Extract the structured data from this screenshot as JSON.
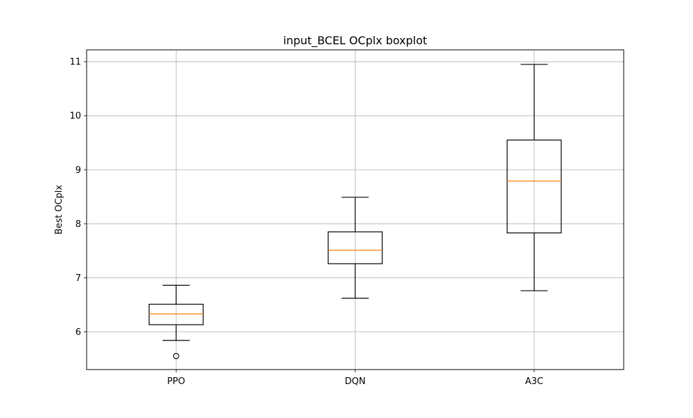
{
  "chart_data": {
    "type": "boxplot",
    "title": "input_BCEL OCplx boxplot",
    "xlabel": "",
    "ylabel": "Best OCplx",
    "categories": [
      "PPO",
      "DQN",
      "A3C"
    ],
    "ylim": [
      5.3,
      11.22
    ],
    "yticks": [
      6,
      7,
      8,
      9,
      10,
      11
    ],
    "grid": true,
    "boxes": [
      {
        "label": "PPO",
        "whisker_low": 5.84,
        "q1": 6.13,
        "median": 6.33,
        "q3": 6.51,
        "whisker_high": 6.86,
        "fliers": [
          5.55
        ]
      },
      {
        "label": "DQN",
        "whisker_low": 6.62,
        "q1": 7.26,
        "median": 7.51,
        "q3": 7.85,
        "whisker_high": 8.49,
        "fliers": []
      },
      {
        "label": "A3C",
        "whisker_low": 6.76,
        "q1": 7.83,
        "median": 8.79,
        "q3": 9.55,
        "whisker_high": 10.95,
        "fliers": []
      }
    ],
    "colors": {
      "box": "#000000",
      "median": "#ff7f0e",
      "grid": "#b0b0b0",
      "background": "#ffffff"
    }
  }
}
